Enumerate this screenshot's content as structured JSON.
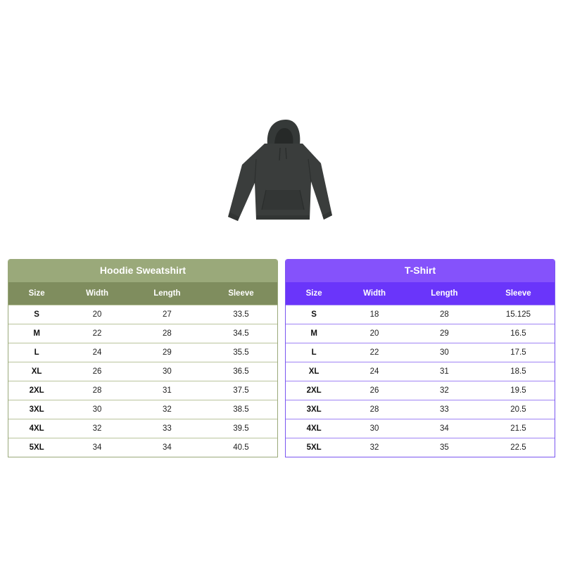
{
  "product_image": {
    "icon": "hoodie-icon",
    "color": "#3a3d3c"
  },
  "hoodie": {
    "title": "Hoodie Sweatshirt",
    "headers": [
      "Size",
      "Width",
      "Length",
      "Sleeve"
    ],
    "rows": [
      [
        "S",
        "20",
        "27",
        "33.5"
      ],
      [
        "M",
        "22",
        "28",
        "34.5"
      ],
      [
        "L",
        "24",
        "29",
        "35.5"
      ],
      [
        "XL",
        "26",
        "30",
        "36.5"
      ],
      [
        "2XL",
        "28",
        "31",
        "37.5"
      ],
      [
        "3XL",
        "30",
        "32",
        "38.5"
      ],
      [
        "4XL",
        "32",
        "33",
        "39.5"
      ],
      [
        "5XL",
        "34",
        "34",
        "40.5"
      ]
    ],
    "accent": "#9aa97a"
  },
  "tshirt": {
    "title": "T-Shirt",
    "headers": [
      "Size",
      "Width",
      "Length",
      "Sleeve"
    ],
    "rows": [
      [
        "S",
        "18",
        "28",
        "15.125"
      ],
      [
        "M",
        "20",
        "29",
        "16.5"
      ],
      [
        "L",
        "22",
        "30",
        "17.5"
      ],
      [
        "XL",
        "24",
        "31",
        "18.5"
      ],
      [
        "2XL",
        "26",
        "32",
        "19.5"
      ],
      [
        "3XL",
        "28",
        "33",
        "20.5"
      ],
      [
        "4XL",
        "30",
        "34",
        "21.5"
      ],
      [
        "5XL",
        "32",
        "35",
        "22.5"
      ]
    ],
    "accent": "#8552fb"
  }
}
